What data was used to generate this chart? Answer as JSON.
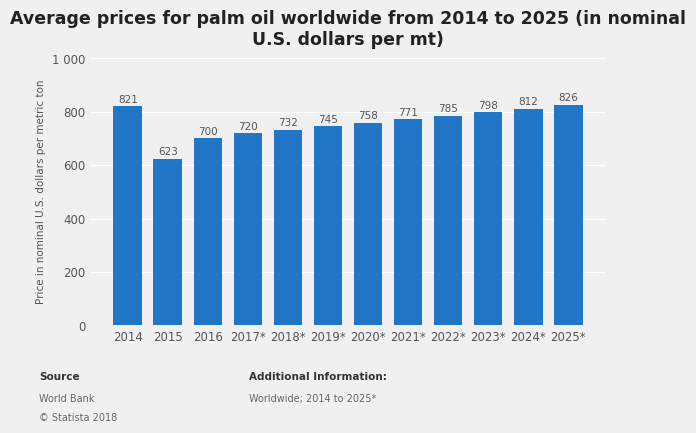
{
  "title": "Average prices for palm oil worldwide from 2014 to 2025 (in nominal\nU.S. dollars per mt)",
  "categories": [
    "2014",
    "2015",
    "2016",
    "2017*",
    "2018*",
    "2019*",
    "2020*",
    "2021*",
    "2022*",
    "2023*",
    "2024*",
    "2025*"
  ],
  "values": [
    821,
    623,
    700,
    720,
    732,
    745,
    758,
    771,
    785,
    798,
    812,
    826
  ],
  "bar_color": "#2176c7",
  "ylabel": "Price in nominal U.S. dollars per metric ton",
  "ylim": [
    0,
    1000
  ],
  "ytick_values": [
    0,
    200,
    400,
    600,
    800,
    1000
  ],
  "ytick_labels": [
    "0",
    "200",
    "400",
    "600",
    "800",
    "1 000"
  ],
  "background_color": "#f0f0f0",
  "plot_bg_color": "#f0f0f0",
  "title_fontsize": 12.5,
  "axis_fontsize": 8.5,
  "ylabel_fontsize": 7.5,
  "source_text_line1": "Source",
  "source_text_line2": "World Bank",
  "source_text_line3": "© Statista 2018",
  "additional_text_line1": "Additional Information:",
  "additional_text_line2": "Worldwide; 2014 to 2025*",
  "grid_color": "#ffffff",
  "bar_label_fontsize": 7.5,
  "bar_label_color": "#555555",
  "bar_width": 0.72
}
